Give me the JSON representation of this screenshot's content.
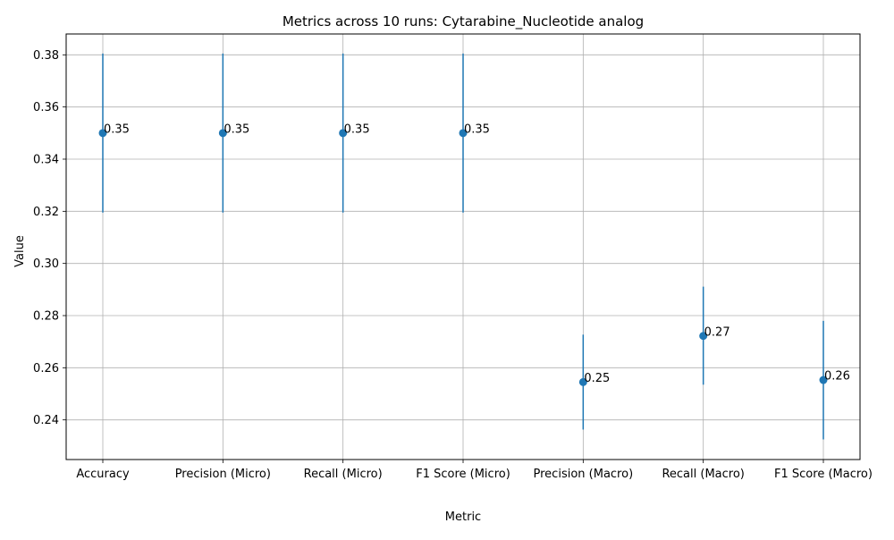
{
  "chart_data": {
    "type": "scatter",
    "title": "Metrics across 10 runs: Cytarabine_Nucleotide analog",
    "xlabel": "Metric",
    "ylabel": "Value",
    "categories": [
      "Accuracy",
      "Precision (Micro)",
      "Recall (Micro)",
      "F1 Score (Micro)",
      "Precision (Macro)",
      "Recall (Macro)",
      "F1 Score (Macro)"
    ],
    "series": [
      {
        "values": [
          0.35,
          0.35,
          0.35,
          0.35,
          0.2545,
          0.2722,
          0.2553
        ],
        "error_low": [
          0.3195,
          0.3195,
          0.3195,
          0.3195,
          0.2363,
          0.2535,
          0.2325
        ],
        "error_high": [
          0.3805,
          0.3805,
          0.3805,
          0.3805,
          0.2727,
          0.2911,
          0.278
        ],
        "labels": [
          "0.35",
          "0.35",
          "0.35",
          "0.35",
          "0.25",
          "0.27",
          "0.26"
        ]
      }
    ],
    "ylim": [
      0.2248,
      0.388
    ],
    "yticks": [
      0.24,
      0.26,
      0.28,
      0.3,
      0.32,
      0.34,
      0.36,
      0.38
    ],
    "ytick_labels": [
      "0.24",
      "0.26",
      "0.28",
      "0.30",
      "0.32",
      "0.34",
      "0.36",
      "0.38"
    ],
    "grid": true,
    "colors": {
      "marker": "#1f77b4",
      "errorbar": "#1f77b4",
      "grid": "#b0b0b0",
      "axes": "#000000"
    }
  }
}
